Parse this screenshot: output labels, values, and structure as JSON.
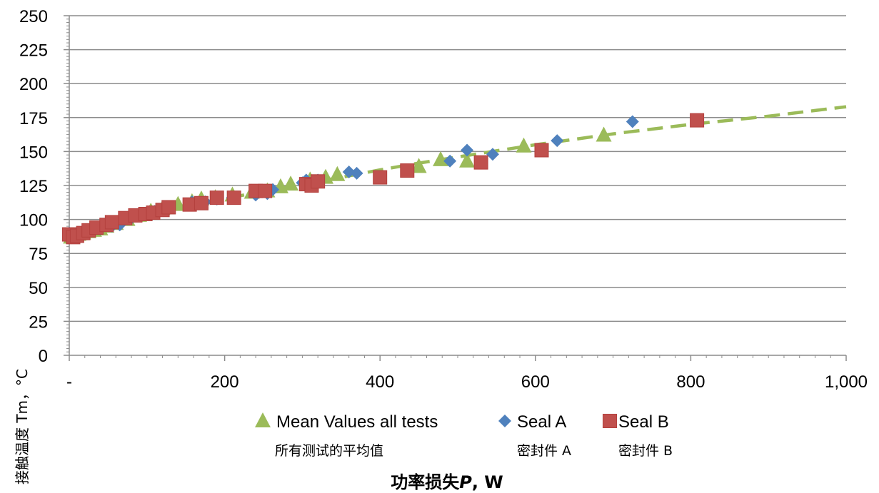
{
  "chart_data": {
    "type": "scatter",
    "xlabel_prefix": "功率损失",
    "xlabel_var": "P",
    "xlabel_unit": ", W",
    "ylabel": "接触温度 Tm，°C",
    "xlim": [
      0,
      1000
    ],
    "ylim": [
      0,
      250
    ],
    "x_ticks": [
      0,
      200,
      400,
      600,
      800,
      1000
    ],
    "x_tick_labels": [
      "-",
      "200",
      "400",
      "600",
      "800",
      "1,000"
    ],
    "y_ticks": [
      0,
      25,
      50,
      75,
      100,
      125,
      150,
      175,
      200,
      225,
      250
    ],
    "y_tick_labels": [
      "0",
      "25",
      "50",
      "75",
      "100",
      "125",
      "150",
      "175",
      "200",
      "225",
      "250"
    ],
    "grid": "horizontal",
    "legend_position": "bottom",
    "series": [
      {
        "name": "Mean Values all tests",
        "name_cn": "所有测试的平均值",
        "marker": "triangle",
        "color": "#9BBB59",
        "x": [
          2,
          6,
          12,
          18,
          25,
          32,
          40,
          48,
          60,
          75,
          90,
          105,
          120,
          140,
          158,
          170,
          188,
          210,
          235,
          255,
          272,
          285,
          310,
          330,
          345,
          450,
          478,
          512,
          585,
          688
        ],
        "y": [
          87,
          88,
          89,
          90,
          91,
          92,
          93,
          95,
          97,
          100,
          103,
          106,
          108,
          111,
          113,
          115,
          116,
          118,
          120,
          121,
          124,
          126,
          129,
          131,
          133,
          139,
          144,
          143,
          154,
          162
        ]
      },
      {
        "name": "Seal A",
        "name_cn": "密封件 A",
        "marker": "diamond",
        "color": "#4F81BD",
        "x": [
          0,
          5,
          12,
          20,
          30,
          40,
          55,
          65,
          80,
          95,
          110,
          125,
          158,
          175,
          190,
          210,
          240,
          255,
          262,
          300,
          305,
          320,
          360,
          370,
          490,
          512,
          545,
          628,
          725
        ],
        "y": [
          90,
          88,
          89,
          90,
          92,
          93,
          95,
          96,
          101,
          104,
          106,
          107,
          113,
          113,
          115,
          116,
          118,
          119,
          122,
          127,
          129,
          129,
          135,
          134,
          143,
          151,
          148,
          158,
          172
        ]
      },
      {
        "name": "Seal B",
        "name_cn": "密封件 B",
        "marker": "square",
        "color": "#C0504D",
        "x": [
          0,
          5,
          10,
          18,
          25,
          35,
          48,
          55,
          72,
          85,
          98,
          108,
          120,
          128,
          155,
          170,
          190,
          212,
          240,
          252,
          305,
          312,
          320,
          400,
          435,
          530,
          608,
          808
        ],
        "y": [
          89,
          87,
          88,
          90,
          92,
          94,
          96,
          98,
          101,
          103,
          104,
          105,
          107,
          109,
          111,
          112,
          116,
          116,
          121,
          121,
          126,
          125,
          128,
          131,
          136,
          142,
          151,
          173
        ]
      }
    ],
    "trendline": {
      "style": "dashed",
      "color": "#9BBB59",
      "x": [
        0,
        25,
        50,
        100,
        150,
        200,
        250,
        300,
        350,
        400,
        450,
        500,
        550,
        600,
        650,
        700,
        750,
        800,
        850,
        900,
        950,
        1000
      ],
      "y": [
        86,
        92,
        96.5,
        104,
        110,
        115.5,
        120.5,
        126,
        131,
        136.5,
        141.5,
        146,
        150.5,
        155,
        159,
        163,
        166.5,
        170,
        173,
        176,
        179.5,
        183
      ]
    }
  }
}
